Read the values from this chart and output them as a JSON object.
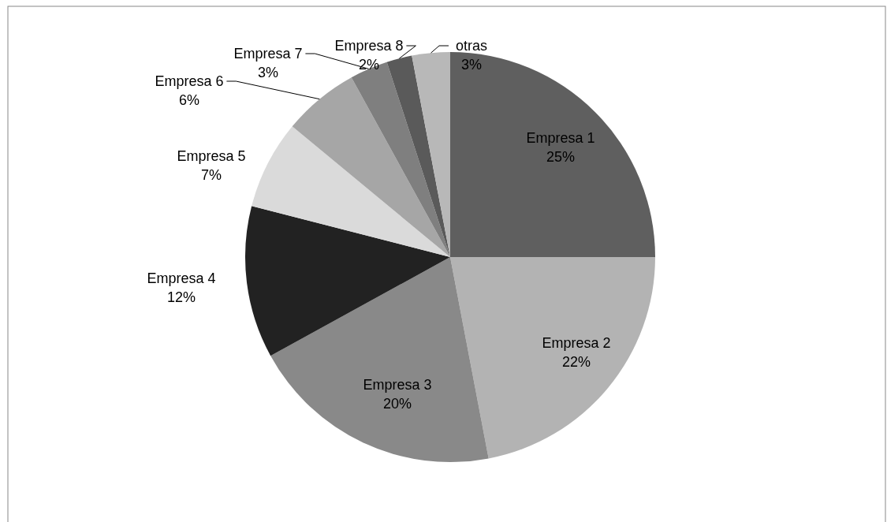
{
  "chart_data": {
    "type": "pie",
    "categories": [
      "Empresa 1",
      "Empresa 2",
      "Empresa 3",
      "Empresa 4",
      "Empresa 5",
      "Empresa 6",
      "Empresa 7",
      "Empresa 8",
      "otras"
    ],
    "values": [
      25,
      22,
      20,
      12,
      7,
      6,
      3,
      2,
      3
    ],
    "value_labels": [
      "25%",
      "22%",
      "20%",
      "12%",
      "7%",
      "6%",
      "3%",
      "2%",
      "3%"
    ],
    "colors": [
      "#5f5f5f",
      "#b3b3b3",
      "#898989",
      "#222222",
      "#dadada",
      "#a6a6a6",
      "#7f7f7f",
      "#5a5a5a",
      "#b8b8b8"
    ]
  }
}
